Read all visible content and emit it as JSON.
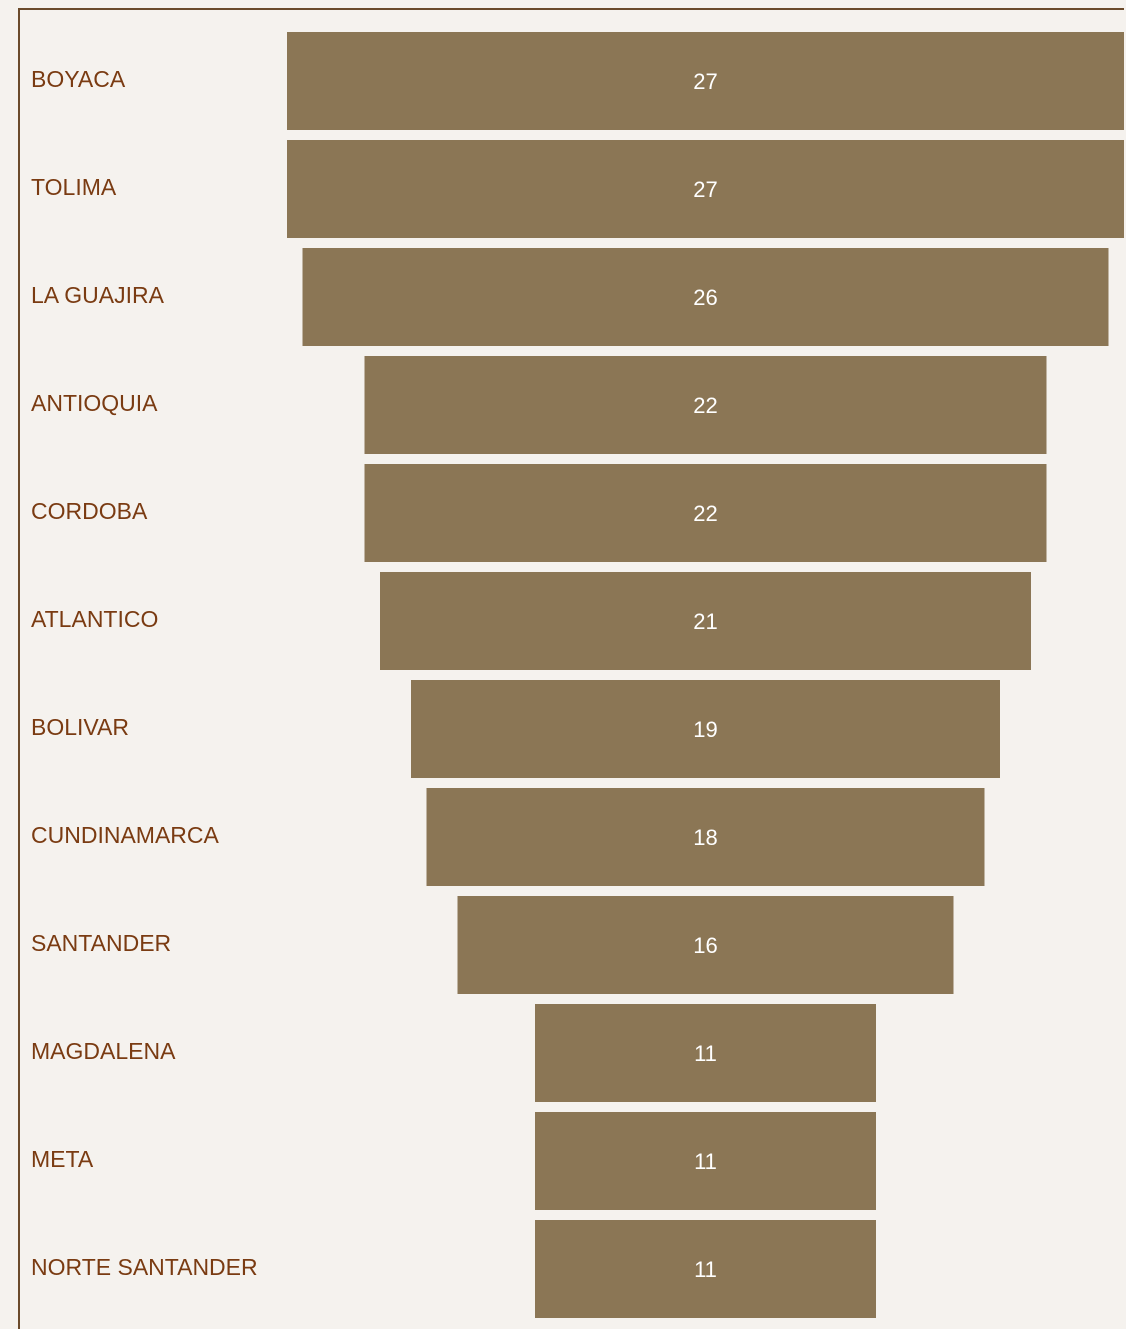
{
  "colors": {
    "background": "#f5f2ee",
    "bar": "#8b7655",
    "axis_line": "#6b4a2b",
    "category_text": "#7a3b12",
    "value_text": "#ffffff"
  },
  "chart_data": {
    "type": "bar",
    "orientation": "horizontal",
    "style": "funnel-centered",
    "title": "",
    "xlabel": "",
    "ylabel": "",
    "grid": false,
    "legend": "none",
    "categories": [
      "BOYACA",
      "TOLIMA",
      "LA GUAJIRA",
      "ANTIOQUIA",
      "CORDOBA",
      "ATLANTICO",
      "BOLIVAR",
      "CUNDINAMARCA",
      "SANTANDER",
      "MAGDALENA",
      "META",
      "NORTE SANTANDER"
    ],
    "values": [
      27,
      27,
      26,
      22,
      22,
      21,
      19,
      18,
      16,
      11,
      11,
      11
    ],
    "xlim": [
      0,
      27
    ]
  }
}
